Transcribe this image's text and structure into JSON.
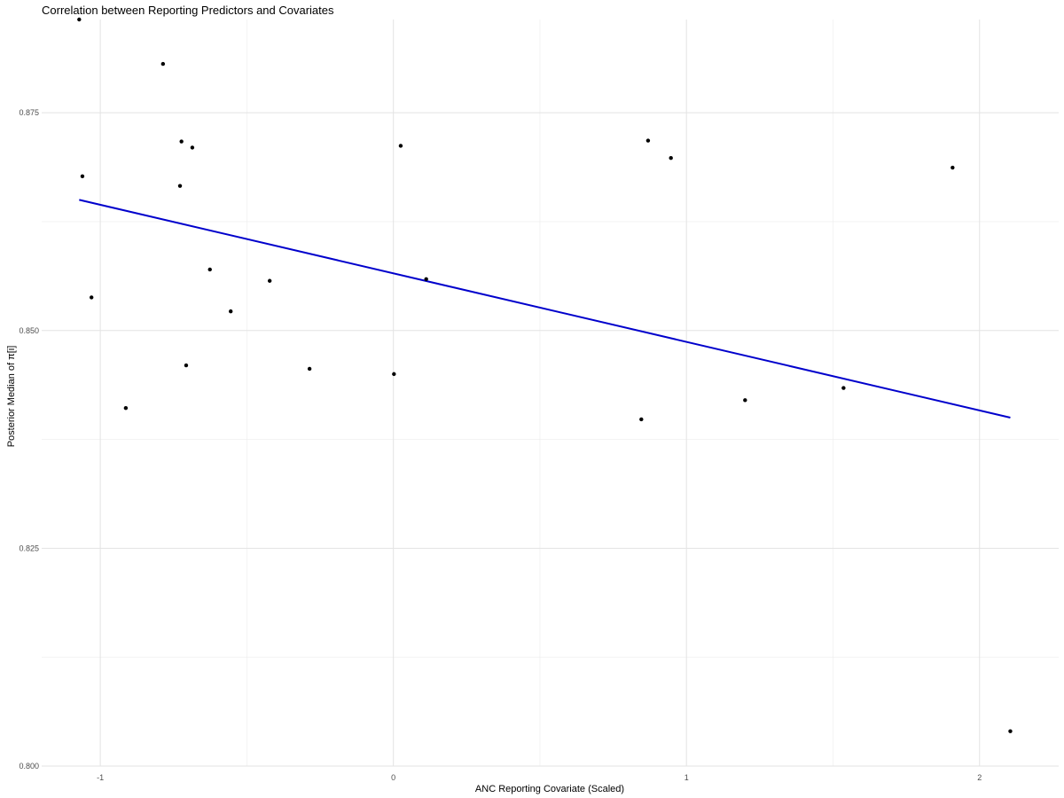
{
  "chart_data": {
    "type": "scatter",
    "title": "Correlation between Reporting Predictors and Covariates",
    "xlabel": "ANC Reporting Covariate (Scaled)",
    "ylabel": "Posterior Median of π[i]",
    "xlim": [
      -1.2,
      2.27
    ],
    "ylim": [
      0.8,
      0.8857
    ],
    "x_ticks": [
      -1,
      0,
      1,
      2
    ],
    "x_tick_labels": [
      "-1",
      "0",
      "1",
      "2"
    ],
    "y_ticks": [
      0.8,
      0.825,
      0.85,
      0.875
    ],
    "y_tick_labels": [
      "0.800",
      "0.825",
      "0.850",
      "0.875"
    ],
    "grid": true,
    "legend": "none",
    "point_color": "#000000",
    "line_color": "#0000cc",
    "points": [
      {
        "x": -1.072,
        "y": 0.8857
      },
      {
        "x": -0.786,
        "y": 0.8806
      },
      {
        "x": -0.723,
        "y": 0.8717
      },
      {
        "x": -0.686,
        "y": 0.871
      },
      {
        "x": -1.061,
        "y": 0.8677
      },
      {
        "x": -0.728,
        "y": 0.8666
      },
      {
        "x": -0.626,
        "y": 0.857
      },
      {
        "x": -1.03,
        "y": 0.8538
      },
      {
        "x": -0.555,
        "y": 0.8522
      },
      {
        "x": -0.422,
        "y": 0.8557
      },
      {
        "x": -0.707,
        "y": 0.846
      },
      {
        "x": -0.286,
        "y": 0.8456
      },
      {
        "x": -0.913,
        "y": 0.8411
      },
      {
        "x": 0.002,
        "y": 0.845
      },
      {
        "x": 0.025,
        "y": 0.8712
      },
      {
        "x": 0.112,
        "y": 0.8559
      },
      {
        "x": 0.869,
        "y": 0.8718
      },
      {
        "x": 0.947,
        "y": 0.8698
      },
      {
        "x": 0.846,
        "y": 0.8398
      },
      {
        "x": 1.2,
        "y": 0.842
      },
      {
        "x": 1.536,
        "y": 0.8434
      },
      {
        "x": 1.908,
        "y": 0.8687
      },
      {
        "x": 2.105,
        "y": 0.804
      }
    ],
    "fit_line": {
      "x": [
        -1.072,
        2.105
      ],
      "y": [
        0.865,
        0.84
      ]
    }
  }
}
